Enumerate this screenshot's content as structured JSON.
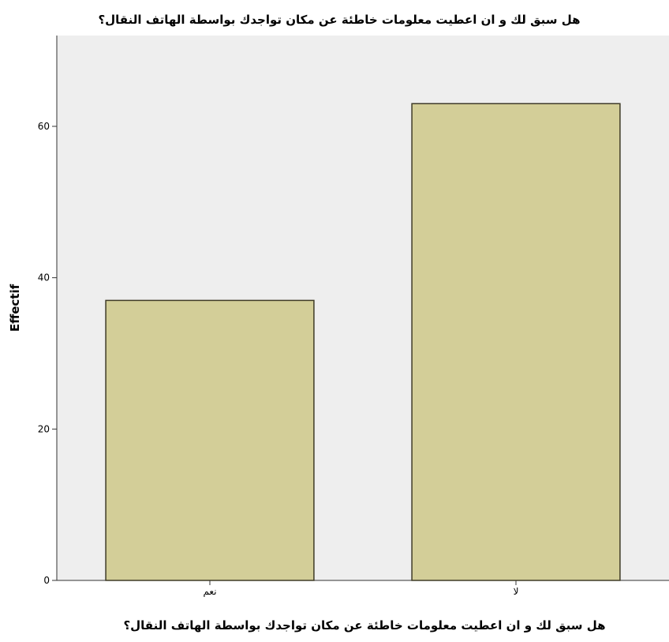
{
  "chart_data": {
    "type": "bar",
    "title": "هل سبق لك و ان اعطيت معلومات خاطئة عن مكان تواجدك بواسطة الهاتف النقال؟",
    "xlabel": "هل سبق لك و ان اعطيت معلومات خاطئة عن مكان تواجدك بواسطة الهاتف النقال؟",
    "ylabel": "Effectif",
    "categories": [
      "نعم",
      "لا"
    ],
    "values": [
      37,
      63
    ],
    "ylim": [
      0,
      72
    ],
    "yticks": [
      0,
      20,
      40,
      60
    ],
    "grid": false,
    "colors": {
      "plot_background": "#eeeeee",
      "bar_fill": "#d3ce98",
      "bar_stroke": "#3f3b27",
      "axis": "#333333"
    }
  }
}
